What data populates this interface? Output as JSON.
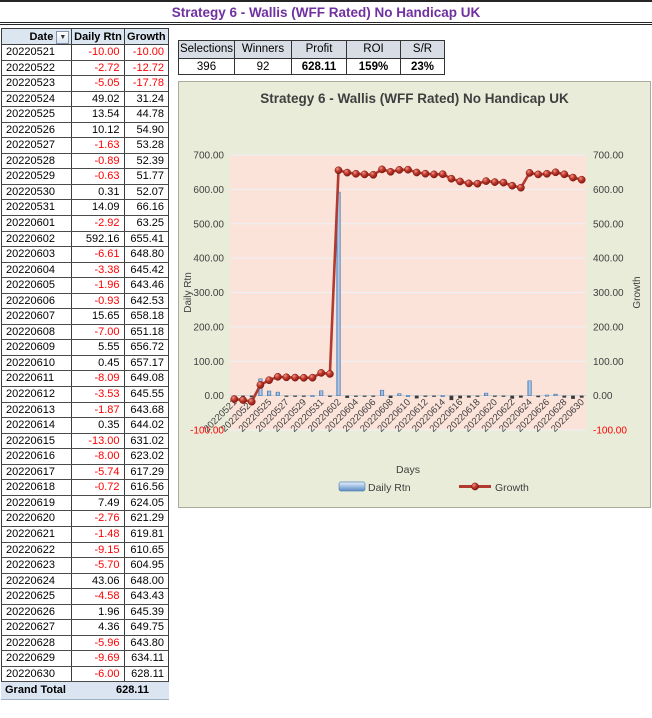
{
  "page_title": "Strategy 6 - Wallis (WFF Rated) No Handicap UK",
  "table": {
    "headers": [
      "Date",
      "Daily Rtn",
      "Growth"
    ],
    "sort_icon": "▼",
    "rows": [
      [
        "20220521",
        "-10.00",
        "-10.00"
      ],
      [
        "20220522",
        "-2.72",
        "-12.72"
      ],
      [
        "20220523",
        "-5.05",
        "-17.78"
      ],
      [
        "20220524",
        "49.02",
        "31.24"
      ],
      [
        "20220525",
        "13.54",
        "44.78"
      ],
      [
        "20220526",
        "10.12",
        "54.90"
      ],
      [
        "20220527",
        "-1.63",
        "53.28"
      ],
      [
        "20220528",
        "-0.89",
        "52.39"
      ],
      [
        "20220529",
        "-0.63",
        "51.77"
      ],
      [
        "20220530",
        "0.31",
        "52.07"
      ],
      [
        "20220531",
        "14.09",
        "66.16"
      ],
      [
        "20220601",
        "-2.92",
        "63.25"
      ],
      [
        "20220602",
        "592.16",
        "655.41"
      ],
      [
        "20220603",
        "-6.61",
        "648.80"
      ],
      [
        "20220604",
        "-3.38",
        "645.42"
      ],
      [
        "20220605",
        "-1.96",
        "643.46"
      ],
      [
        "20220606",
        "-0.93",
        "642.53"
      ],
      [
        "20220607",
        "15.65",
        "658.18"
      ],
      [
        "20220608",
        "-7.00",
        "651.18"
      ],
      [
        "20220609",
        "5.55",
        "656.72"
      ],
      [
        "20220610",
        "0.45",
        "657.17"
      ],
      [
        "20220611",
        "-8.09",
        "649.08"
      ],
      [
        "20220612",
        "-3.53",
        "645.55"
      ],
      [
        "20220613",
        "-1.87",
        "643.68"
      ],
      [
        "20220614",
        "0.35",
        "644.02"
      ],
      [
        "20220615",
        "-13.00",
        "631.02"
      ],
      [
        "20220616",
        "-8.00",
        "623.02"
      ],
      [
        "20220617",
        "-5.74",
        "617.29"
      ],
      [
        "20220618",
        "-0.72",
        "616.56"
      ],
      [
        "20220619",
        "7.49",
        "624.05"
      ],
      [
        "20220620",
        "-2.76",
        "621.29"
      ],
      [
        "20220621",
        "-1.48",
        "619.81"
      ],
      [
        "20220622",
        "-9.15",
        "610.65"
      ],
      [
        "20220623",
        "-5.70",
        "604.95"
      ],
      [
        "20220624",
        "43.06",
        "648.00"
      ],
      [
        "20220625",
        "-4.58",
        "643.43"
      ],
      [
        "20220626",
        "1.96",
        "645.39"
      ],
      [
        "20220627",
        "4.36",
        "649.75"
      ],
      [
        "20220628",
        "-5.96",
        "643.80"
      ],
      [
        "20220629",
        "-9.69",
        "634.11"
      ],
      [
        "20220630",
        "-6.00",
        "628.11"
      ]
    ],
    "grand_total_label": "Grand Total",
    "grand_total_value": "628.11"
  },
  "stats": {
    "headers": [
      "Selections",
      "Winners",
      "Profit",
      "ROI",
      "S/R"
    ],
    "values": [
      "396",
      "92",
      "628.11",
      "159%",
      "23%"
    ]
  },
  "chart_data": {
    "type": "bar",
    "title": "Strategy 6 - Wallis (WFF Rated) No Handicap UK",
    "xlabel": "Days",
    "ylabel_left": "Daily Rtn",
    "ylabel_right": "Growth",
    "ylim": [
      -100,
      700
    ],
    "ytick_step": 100,
    "grid": "horizontal",
    "legend_position": "bottom",
    "categories": [
      "20220521",
      "20220522",
      "20220523",
      "20220524",
      "20220525",
      "20220526",
      "20220527",
      "20220528",
      "20220529",
      "20220530",
      "20220531",
      "20220601",
      "20220602",
      "20220603",
      "20220604",
      "20220605",
      "20220606",
      "20220607",
      "20220608",
      "20220609",
      "20220610",
      "20220611",
      "20220612",
      "20220613",
      "20220614",
      "20220615",
      "20220616",
      "20220617",
      "20220618",
      "20220619",
      "20220620",
      "20220621",
      "20220622",
      "20220623",
      "20220624",
      "20220625",
      "20220626",
      "20220627",
      "20220628",
      "20220629",
      "20220630"
    ],
    "x_tick_every": 2,
    "series": [
      {
        "name": "Daily Rtn",
        "type": "bar",
        "values": [
          -10.0,
          -2.72,
          -5.05,
          49.02,
          13.54,
          10.12,
          -1.63,
          -0.89,
          -0.63,
          0.31,
          14.09,
          -2.92,
          592.16,
          -6.61,
          -3.38,
          -1.96,
          -0.93,
          15.65,
          -7.0,
          5.55,
          0.45,
          -8.09,
          -3.53,
          -1.87,
          0.35,
          -13.0,
          -8.0,
          -5.74,
          -0.72,
          7.49,
          -2.76,
          -1.48,
          -9.15,
          -5.7,
          43.06,
          -4.58,
          1.96,
          4.36,
          -5.96,
          -9.69,
          -6.0
        ]
      },
      {
        "name": "Growth",
        "type": "line",
        "values": [
          -10.0,
          -12.72,
          -17.78,
          31.24,
          44.78,
          54.9,
          53.28,
          52.39,
          51.77,
          52.07,
          66.16,
          63.25,
          655.41,
          648.8,
          645.42,
          643.46,
          642.53,
          658.18,
          651.18,
          656.72,
          657.17,
          649.08,
          645.55,
          643.68,
          644.02,
          631.02,
          623.02,
          617.29,
          616.56,
          624.05,
          621.29,
          619.81,
          610.65,
          604.95,
          648.0,
          643.43,
          645.39,
          649.75,
          643.8,
          634.11,
          628.11
        ]
      }
    ],
    "colors": {
      "chart_bg": "#E9ECD9",
      "plot_bg": "#FBE3D9",
      "grid": "#EEF2F8",
      "bar_fill": "#7FA8D9",
      "bar_stroke": "#3E6FA8",
      "bar_negative": "#3A3A3A",
      "line": "#B23B30",
      "marker": "#C13A2D",
      "axis_text": "#404040",
      "negative_text": "#FF0000"
    }
  },
  "colors": {
    "title_purple": "#7030A0",
    "negative_red": "#FF0000",
    "table_header_bg": "#DCE6F1",
    "stats_header_bg": "#D8DDE5"
  }
}
